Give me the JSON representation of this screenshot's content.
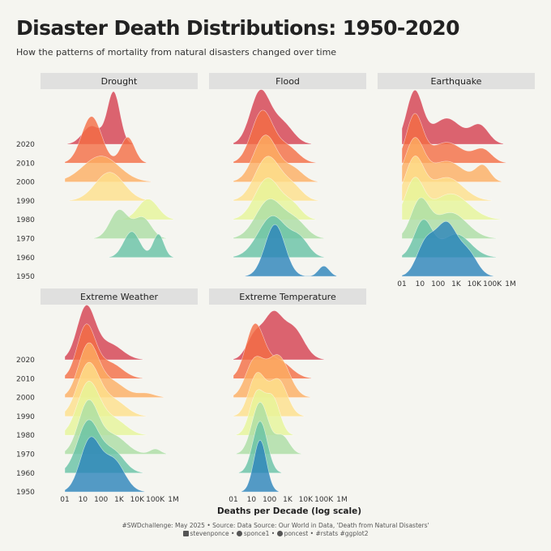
{
  "title": "Disaster Death Distributions: 1950-2020",
  "subtitle": "How the patterns of mortality from natural disasters changed over time",
  "caption": {
    "line1": "#SWDchallenge: May 2025 • Source: Data Source: Our World in Data, 'Death from Natural Disasters'",
    "linkedin": "stevenponce",
    "bluesky": "sponce1",
    "github": "poncest",
    "tags": "#rstats #ggplot2"
  },
  "chart_data": {
    "type": "ridgeline",
    "x_scale": "log10",
    "xlim": [
      1,
      1000000
    ],
    "x_ticks": [
      {
        "label": "01",
        "value": 1
      },
      {
        "label": "10",
        "value": 10
      },
      {
        "label": "100",
        "value": 100
      },
      {
        "label": "1K",
        "value": 1000
      },
      {
        "label": "10K",
        "value": 10000
      },
      {
        "label": "100K",
        "value": 100000
      },
      {
        "label": "1M",
        "value": 1000000
      }
    ],
    "decades": [
      "1950",
      "1960",
      "1970",
      "1980",
      "1990",
      "2000",
      "2010",
      "2020"
    ],
    "xlabel": "Deaths per Decade (log scale)",
    "colors": {
      "1950": "#2b83ba",
      "1960": "#66c2a5",
      "1970": "#abdda4",
      "1980": "#e6f598",
      "1990": "#fee08b",
      "2000": "#fdae61",
      "2010": "#f46d43",
      "2020": "#d53e4f"
    },
    "panels": [
      {
        "name": "Drought",
        "show_x_axis": false,
        "ridges": {
          "1950": [],
          "1960": [
            [
              5000,
              0.45,
              0.5
            ],
            [
              150000,
              0.3,
              0.45
            ]
          ],
          "1970": [
            [
              1000,
              0.5,
              0.55
            ],
            [
              20000,
              0.48,
              0.4
            ]
          ],
          "1980": [
            [
              40000,
              0.55,
              0.4
            ]
          ],
          "1990": [
            [
              300,
              0.8,
              0.55
            ]
          ],
          "2000": [
            [
              100,
              1.0,
              0.5
            ]
          ],
          "2010": [
            [
              30,
              0.55,
              0.9
            ],
            [
              3000,
              0.38,
              0.5
            ]
          ],
          "2020": [
            [
              30,
              0.5,
              0.35
            ],
            [
              500,
              0.35,
              1.0
            ]
          ]
        }
      },
      {
        "name": "Flood",
        "show_x_axis": false,
        "ridges": {
          "1950": [
            [
              200,
              0.55,
              1.0
            ],
            [
              100000,
              0.3,
              0.2
            ]
          ],
          "1960": [
            [
              150,
              0.8,
              0.8
            ],
            [
              5000,
              0.5,
              0.3
            ]
          ],
          "1970": [
            [
              100,
              0.75,
              0.75
            ],
            [
              3000,
              0.6,
              0.3
            ]
          ],
          "1980": [
            [
              80,
              0.7,
              0.8
            ],
            [
              2000,
              0.5,
              0.25
            ]
          ],
          "1990": [
            [
              80,
              0.7,
              0.85
            ],
            [
              2000,
              0.55,
              0.25
            ]
          ],
          "2000": [
            [
              60,
              0.65,
              0.9
            ],
            [
              2000,
              0.55,
              0.25
            ]
          ],
          "2010": [
            [
              40,
              0.6,
              1.0
            ],
            [
              1000,
              0.6,
              0.3
            ]
          ],
          "2020": [
            [
              30,
              0.55,
              1.0
            ],
            [
              500,
              0.6,
              0.4
            ]
          ]
        }
      },
      {
        "name": "Earthquake",
        "show_x_axis": true,
        "ridges": {
          "1950": [
            [
              20,
              0.5,
              0.6
            ],
            [
              300,
              0.6,
              1.0
            ],
            [
              5000,
              0.5,
              0.4
            ]
          ],
          "1960": [
            [
              15,
              0.5,
              0.7
            ],
            [
              1000,
              0.8,
              0.45
            ]
          ],
          "1970": [
            [
              10,
              0.5,
              0.7
            ],
            [
              500,
              0.9,
              0.5
            ]
          ],
          "1980": [
            [
              5,
              0.5,
              0.75
            ],
            [
              500,
              1.0,
              0.5
            ]
          ],
          "1990": [
            [
              5,
              0.5,
              0.8
            ],
            [
              300,
              0.9,
              0.45
            ]
          ],
          "2000": [
            [
              5,
              0.5,
              0.8
            ],
            [
              300,
              0.9,
              0.4
            ],
            [
              30000,
              0.4,
              0.3
            ]
          ],
          "2010": [
            [
              5,
              0.45,
              0.9
            ],
            [
              300,
              0.9,
              0.4
            ],
            [
              30000,
              0.5,
              0.25
            ]
          ],
          "2020": [
            [
              5,
              0.45,
              1.0
            ],
            [
              300,
              0.8,
              0.5
            ],
            [
              20000,
              0.5,
              0.35
            ]
          ]
        }
      },
      {
        "name": "Extreme Weather",
        "show_x_axis": true,
        "ridges": {
          "1950": [
            [
              25,
              0.55,
              1.0
            ],
            [
              500,
              0.6,
              0.6
            ]
          ],
          "1960": [
            [
              20,
              0.6,
              1.0
            ],
            [
              500,
              0.6,
              0.4
            ]
          ],
          "1970": [
            [
              20,
              0.55,
              1.0
            ],
            [
              500,
              0.7,
              0.35
            ],
            [
              100000,
              0.3,
              0.1
            ]
          ],
          "1980": [
            [
              20,
              0.6,
              1.0
            ],
            [
              500,
              0.7,
              0.3
            ]
          ],
          "1990": [
            [
              20,
              0.6,
              1.0
            ],
            [
              500,
              0.7,
              0.3
            ]
          ],
          "2000": [
            [
              20,
              0.55,
              1.0
            ],
            [
              400,
              0.7,
              0.3
            ],
            [
              30000,
              0.5,
              0.08
            ]
          ],
          "2010": [
            [
              15,
              0.5,
              1.0
            ],
            [
              300,
              0.7,
              0.3
            ]
          ],
          "2020": [
            [
              15,
              0.5,
              1.0
            ],
            [
              300,
              0.7,
              0.3
            ]
          ]
        }
      },
      {
        "name": "Extreme Temperature",
        "show_x_axis": true,
        "ridges": {
          "1950": [
            [
              30,
              0.35,
              1.0
            ]
          ],
          "1960": [
            [
              30,
              0.4,
              1.0
            ]
          ],
          "1970": [
            [
              30,
              0.45,
              1.0
            ],
            [
              500,
              0.4,
              0.35
            ]
          ],
          "1980": [
            [
              20,
              0.4,
              0.8
            ],
            [
              150,
              0.4,
              0.7
            ]
          ],
          "1990": [
            [
              20,
              0.45,
              0.8
            ],
            [
              300,
              0.5,
              0.7
            ]
          ],
          "2000": [
            [
              15,
              0.5,
              0.7
            ],
            [
              300,
              0.6,
              0.8
            ]
          ],
          "2010": [
            [
              15,
              0.5,
              1.0
            ],
            [
              300,
              0.7,
              0.35
            ]
          ],
          "2020": [
            [
              15,
              0.45,
              0.45
            ],
            [
              150,
              0.5,
              0.8
            ],
            [
              2000,
              0.6,
              0.6
            ]
          ]
        }
      }
    ]
  }
}
